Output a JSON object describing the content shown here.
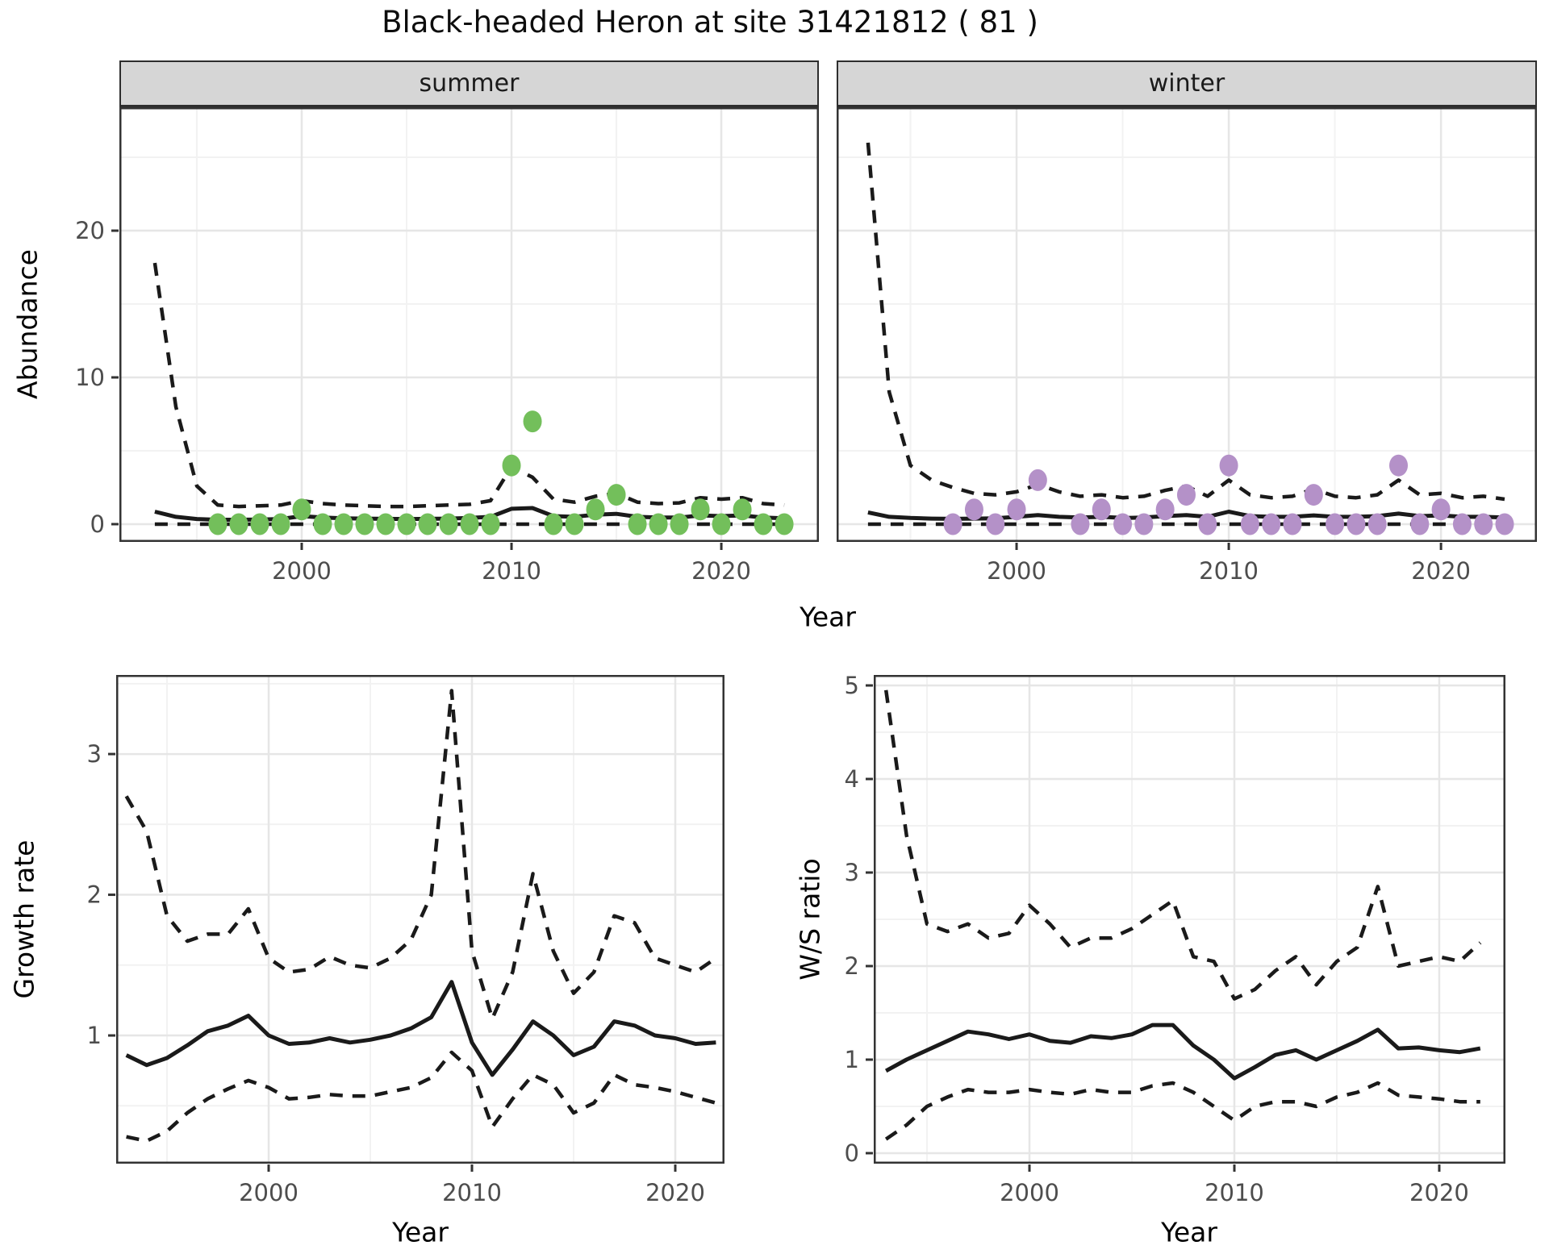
{
  "title": "Black-headed Heron at site 31421812 ( 81 )",
  "facets": {
    "summer": "summer",
    "winter": "winter"
  },
  "axis": {
    "abundance_ylabel": "Abundance",
    "growth_ylabel": "Growth rate",
    "ws_ylabel": "W/S ratio",
    "xlabel_top": "Year",
    "xlabel_growth": "Year",
    "xlabel_ws": "Year"
  },
  "colors": {
    "summer_points": "#73bf5b",
    "winter_points": "#b491c8",
    "line": "#1a1a1a",
    "grid_major": "#e6e6e6",
    "grid_minor": "#f2f2f2",
    "panel_border": "#333333",
    "tick": "#333333",
    "strip_bg": "#d6d6d6"
  },
  "chart_data": [
    {
      "id": "summer-abundance",
      "type": "line",
      "facet": "summer",
      "title": "Abundance, summer facet",
      "xlabel": "Year",
      "ylabel": "Abundance",
      "xlim": [
        1991.31,
        2024.65
      ],
      "ylim": [
        -1.21,
        28.41
      ],
      "x_ticks": [
        2000,
        2010,
        2020
      ],
      "x_minor": [
        1995,
        2005,
        2015
      ],
      "y_ticks": [
        0,
        10,
        20
      ],
      "y_minor": [
        5,
        15,
        25
      ],
      "y_labels": true,
      "grid": true,
      "legend": "none",
      "series": [
        {
          "name": "upper-ci",
          "style": "dashed",
          "x": [
            1993,
            1994,
            1995,
            1996,
            1997,
            1998,
            1999,
            2000,
            2001,
            2002,
            2003,
            2004,
            2005,
            2006,
            2007,
            2008,
            2009,
            2010,
            2011,
            2012,
            2013,
            2014,
            2015,
            2016,
            2017,
            2018,
            2019,
            2020,
            2021,
            2022,
            2023
          ],
          "y": [
            17.8,
            8.0,
            2.6,
            1.3,
            1.2,
            1.25,
            1.3,
            1.6,
            1.4,
            1.3,
            1.25,
            1.2,
            1.2,
            1.25,
            1.3,
            1.35,
            1.6,
            3.9,
            3.2,
            1.7,
            1.5,
            1.9,
            2.1,
            1.5,
            1.4,
            1.45,
            1.8,
            1.7,
            1.8,
            1.4,
            1.3
          ]
        },
        {
          "name": "lower-ci",
          "style": "dashed",
          "x": [
            1993,
            1994,
            1995,
            1996,
            1997,
            1998,
            1999,
            2000,
            2001,
            2002,
            2003,
            2004,
            2005,
            2006,
            2007,
            2008,
            2009,
            2010,
            2011,
            2012,
            2013,
            2014,
            2015,
            2016,
            2017,
            2018,
            2019,
            2020,
            2021,
            2022,
            2023
          ],
          "y": [
            0,
            0,
            0,
            0,
            0,
            0,
            0,
            0,
            0,
            0,
            0,
            0,
            0,
            0,
            0,
            0,
            0,
            0,
            0,
            0,
            0,
            0,
            0,
            0,
            0,
            0,
            0,
            0,
            0,
            0,
            0
          ]
        },
        {
          "name": "median",
          "style": "solid",
          "x": [
            1993,
            1994,
            1995,
            1996,
            1997,
            1998,
            1999,
            2000,
            2001,
            2002,
            2003,
            2004,
            2005,
            2006,
            2007,
            2008,
            2009,
            2010,
            2011,
            2012,
            2013,
            2014,
            2015,
            2016,
            2017,
            2018,
            2019,
            2020,
            2021,
            2022,
            2023
          ],
          "y": [
            0.85,
            0.5,
            0.35,
            0.3,
            0.3,
            0.32,
            0.35,
            0.55,
            0.45,
            0.4,
            0.38,
            0.36,
            0.35,
            0.36,
            0.38,
            0.42,
            0.5,
            1.05,
            1.1,
            0.55,
            0.5,
            0.65,
            0.7,
            0.5,
            0.45,
            0.45,
            0.6,
            0.55,
            0.6,
            0.45,
            0.4
          ]
        },
        {
          "name": "observed-counts",
          "style": "points",
          "color": "#73bf5b",
          "x": [
            1996,
            1997,
            1998,
            1999,
            2000,
            2001,
            2002,
            2003,
            2004,
            2005,
            2006,
            2007,
            2008,
            2009,
            2010,
            2011,
            2012,
            2013,
            2014,
            2015,
            2016,
            2017,
            2018,
            2019,
            2020,
            2021,
            2022,
            2023
          ],
          "y": [
            0,
            0,
            0,
            0,
            1,
            0,
            0,
            0,
            0,
            0,
            0,
            0,
            0,
            0,
            4,
            7,
            0,
            0,
            1,
            2,
            0,
            0,
            0,
            1,
            0,
            1,
            0,
            0
          ]
        }
      ]
    },
    {
      "id": "winter-abundance",
      "type": "line",
      "facet": "winter",
      "title": "Abundance, winter facet",
      "xlabel": "Year",
      "ylabel": "Abundance",
      "xlim": [
        1991.52,
        2024.52
      ],
      "ylim": [
        -1.21,
        28.41
      ],
      "x_ticks": [
        2000,
        2010,
        2020
      ],
      "x_minor": [
        1995,
        2005,
        2015
      ],
      "y_ticks": [
        0,
        10,
        20
      ],
      "y_minor": [
        5,
        15,
        25
      ],
      "y_labels": false,
      "grid": true,
      "legend": "none",
      "series": [
        {
          "name": "upper-ci",
          "style": "dashed",
          "x": [
            1993,
            1994,
            1995,
            1996,
            1997,
            1998,
            1999,
            2000,
            2001,
            2002,
            2003,
            2004,
            2005,
            2006,
            2007,
            2008,
            2009,
            2010,
            2011,
            2012,
            2013,
            2014,
            2015,
            2016,
            2017,
            2018,
            2019,
            2020,
            2021,
            2022,
            2023
          ],
          "y": [
            26.0,
            9.0,
            4.0,
            3.0,
            2.5,
            2.1,
            2.0,
            2.2,
            2.7,
            2.2,
            1.9,
            2.0,
            1.8,
            1.9,
            2.3,
            2.6,
            1.9,
            3.0,
            2.0,
            1.8,
            1.9,
            2.4,
            1.9,
            1.8,
            2.0,
            3.0,
            2.0,
            2.1,
            1.8,
            1.9,
            1.7
          ]
        },
        {
          "name": "lower-ci",
          "style": "dashed",
          "x": [
            1993,
            1994,
            1995,
            1996,
            1997,
            1998,
            1999,
            2000,
            2001,
            2002,
            2003,
            2004,
            2005,
            2006,
            2007,
            2008,
            2009,
            2010,
            2011,
            2012,
            2013,
            2014,
            2015,
            2016,
            2017,
            2018,
            2019,
            2020,
            2021,
            2022,
            2023
          ],
          "y": [
            0,
            0,
            0,
            0,
            0,
            0,
            0,
            0,
            0,
            0,
            0,
            0,
            0,
            0,
            0,
            0,
            0,
            0,
            0,
            0,
            0,
            0,
            0,
            0,
            0,
            0,
            0,
            0,
            0,
            0,
            0
          ]
        },
        {
          "name": "median",
          "style": "solid",
          "x": [
            1993,
            1994,
            1995,
            1996,
            1997,
            1998,
            1999,
            2000,
            2001,
            2002,
            2003,
            2004,
            2005,
            2006,
            2007,
            2008,
            2009,
            2010,
            2011,
            2012,
            2013,
            2014,
            2015,
            2016,
            2017,
            2018,
            2019,
            2020,
            2021,
            2022,
            2023
          ],
          "y": [
            0.8,
            0.5,
            0.42,
            0.38,
            0.36,
            0.38,
            0.4,
            0.5,
            0.62,
            0.5,
            0.45,
            0.5,
            0.42,
            0.45,
            0.55,
            0.62,
            0.5,
            0.85,
            0.55,
            0.5,
            0.5,
            0.6,
            0.5,
            0.5,
            0.55,
            0.72,
            0.55,
            0.6,
            0.5,
            0.5,
            0.45
          ]
        },
        {
          "name": "observed-counts",
          "style": "points",
          "color": "#b491c8",
          "x": [
            1997,
            1998,
            1999,
            2000,
            2001,
            2003,
            2004,
            2005,
            2006,
            2007,
            2008,
            2009,
            2010,
            2011,
            2012,
            2013,
            2014,
            2015,
            2016,
            2017,
            2018,
            2019,
            2020,
            2021,
            2022,
            2023
          ],
          "y": [
            0,
            1,
            0,
            1,
            3,
            0,
            1,
            0,
            0,
            1,
            2,
            0,
            4,
            0,
            0,
            0,
            2,
            0,
            0,
            0,
            4,
            0,
            1,
            0,
            0,
            0
          ]
        }
      ]
    },
    {
      "id": "growth-rate",
      "type": "line",
      "title": "Growth rate",
      "xlabel": "Year",
      "ylabel": "Growth rate",
      "xlim": [
        1992.5,
        2022.42
      ],
      "ylim": [
        0.089,
        3.562
      ],
      "x_ticks": [
        2000,
        2010,
        2020
      ],
      "x_minor": [
        1995,
        2005,
        2015
      ],
      "y_ticks": [
        1,
        2,
        3
      ],
      "y_minor": [
        0.5,
        1.5,
        2.5,
        3.5
      ],
      "y_labels": true,
      "grid": true,
      "legend": "none",
      "series": [
        {
          "name": "upper-ci",
          "style": "dashed",
          "x": [
            1993,
            1994,
            1995,
            1996,
            1997,
            1998,
            1999,
            2000,
            2001,
            2002,
            2003,
            2004,
            2005,
            2006,
            2007,
            2008,
            2009,
            2010,
            2011,
            2012,
            2013,
            2014,
            2015,
            2016,
            2017,
            2018,
            2019,
            2020,
            2021,
            2022
          ],
          "y": [
            2.7,
            2.45,
            1.85,
            1.67,
            1.72,
            1.72,
            1.9,
            1.55,
            1.45,
            1.47,
            1.56,
            1.5,
            1.48,
            1.55,
            1.68,
            2.0,
            3.45,
            1.6,
            1.12,
            1.45,
            2.15,
            1.6,
            1.3,
            1.45,
            1.85,
            1.8,
            1.55,
            1.5,
            1.45,
            1.55
          ]
        },
        {
          "name": "lower-ci",
          "style": "dashed",
          "x": [
            1993,
            1994,
            1995,
            1996,
            1997,
            1998,
            1999,
            2000,
            2001,
            2002,
            2003,
            2004,
            2005,
            2006,
            2007,
            2008,
            2009,
            2010,
            2011,
            2012,
            2013,
            2014,
            2015,
            2016,
            2017,
            2018,
            2019,
            2020,
            2021,
            2022
          ],
          "y": [
            0.28,
            0.25,
            0.32,
            0.45,
            0.55,
            0.62,
            0.68,
            0.63,
            0.55,
            0.56,
            0.58,
            0.57,
            0.57,
            0.6,
            0.63,
            0.7,
            0.88,
            0.75,
            0.35,
            0.55,
            0.72,
            0.65,
            0.45,
            0.52,
            0.72,
            0.65,
            0.63,
            0.6,
            0.56,
            0.52
          ]
        },
        {
          "name": "median",
          "style": "solid",
          "x": [
            1993,
            1994,
            1995,
            1996,
            1997,
            1998,
            1999,
            2000,
            2001,
            2002,
            2003,
            2004,
            2005,
            2006,
            2007,
            2008,
            2009,
            2010,
            2011,
            2012,
            2013,
            2014,
            2015,
            2016,
            2017,
            2018,
            2019,
            2020,
            2021,
            2022
          ],
          "y": [
            0.86,
            0.79,
            0.84,
            0.93,
            1.03,
            1.07,
            1.14,
            1.0,
            0.94,
            0.95,
            0.98,
            0.95,
            0.97,
            1.0,
            1.05,
            1.13,
            1.38,
            0.95,
            0.72,
            0.9,
            1.1,
            1.0,
            0.86,
            0.92,
            1.1,
            1.07,
            1.0,
            0.98,
            0.94,
            0.95
          ]
        }
      ]
    },
    {
      "id": "ws-ratio",
      "type": "line",
      "title": "W/S ratio",
      "xlabel": "Year",
      "ylabel": "W/S ratio",
      "xlim": [
        1992.4,
        2023.23
      ],
      "ylim": [
        -0.112,
        5.112
      ],
      "x_ticks": [
        2000,
        2010,
        2020
      ],
      "x_minor": [
        1995,
        2005,
        2015
      ],
      "y_ticks": [
        0,
        1,
        2,
        3,
        4,
        5
      ],
      "y_minor": [
        0.5,
        1.5,
        2.5,
        3.5,
        4.5
      ],
      "y_labels": true,
      "grid": true,
      "legend": "none",
      "series": [
        {
          "name": "upper-ci",
          "style": "dashed",
          "x": [
            1993,
            1994,
            1995,
            1996,
            1997,
            1998,
            1999,
            2000,
            2001,
            2002,
            2003,
            2004,
            2005,
            2006,
            2007,
            2008,
            2009,
            2010,
            2011,
            2012,
            2013,
            2014,
            2015,
            2016,
            2017,
            2018,
            2019,
            2020,
            2021,
            2022
          ],
          "y": [
            4.95,
            3.4,
            2.45,
            2.37,
            2.45,
            2.3,
            2.35,
            2.65,
            2.45,
            2.2,
            2.3,
            2.3,
            2.4,
            2.55,
            2.7,
            2.1,
            2.05,
            1.65,
            1.75,
            1.95,
            2.1,
            1.8,
            2.05,
            2.2,
            2.85,
            2.0,
            2.05,
            2.1,
            2.05,
            2.25
          ]
        },
        {
          "name": "lower-ci",
          "style": "dashed",
          "x": [
            1993,
            1994,
            1995,
            1996,
            1997,
            1998,
            1999,
            2000,
            2001,
            2002,
            2003,
            2004,
            2005,
            2006,
            2007,
            2008,
            2009,
            2010,
            2011,
            2012,
            2013,
            2014,
            2015,
            2016,
            2017,
            2018,
            2019,
            2020,
            2021,
            2022
          ],
          "y": [
            0.15,
            0.3,
            0.5,
            0.6,
            0.68,
            0.65,
            0.65,
            0.68,
            0.65,
            0.63,
            0.68,
            0.65,
            0.65,
            0.72,
            0.75,
            0.65,
            0.5,
            0.35,
            0.5,
            0.55,
            0.55,
            0.5,
            0.6,
            0.65,
            0.75,
            0.62,
            0.6,
            0.58,
            0.55,
            0.55
          ]
        },
        {
          "name": "median",
          "style": "solid",
          "x": [
            1993,
            1994,
            1995,
            1996,
            1997,
            1998,
            1999,
            2000,
            2001,
            2002,
            2003,
            2004,
            2005,
            2006,
            2007,
            2008,
            2009,
            2010,
            2011,
            2012,
            2013,
            2014,
            2015,
            2016,
            2017,
            2018,
            2019,
            2020,
            2021,
            2022
          ],
          "y": [
            0.88,
            1.0,
            1.1,
            1.2,
            1.3,
            1.27,
            1.22,
            1.27,
            1.2,
            1.18,
            1.25,
            1.23,
            1.27,
            1.37,
            1.37,
            1.15,
            1.0,
            0.8,
            0.92,
            1.05,
            1.1,
            1.0,
            1.1,
            1.2,
            1.32,
            1.12,
            1.13,
            1.1,
            1.08,
            1.12
          ]
        }
      ]
    }
  ]
}
